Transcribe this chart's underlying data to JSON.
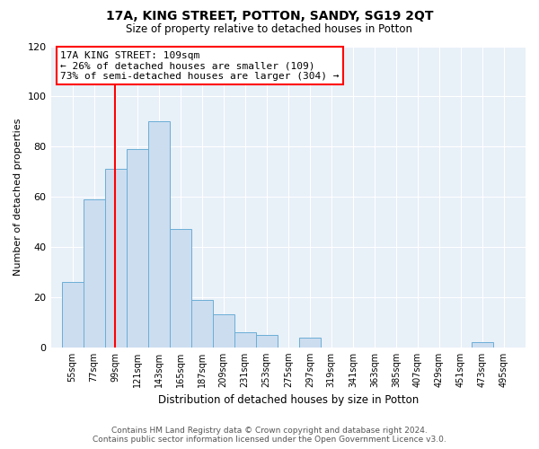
{
  "title": "17A, KING STREET, POTTON, SANDY, SG19 2QT",
  "subtitle": "Size of property relative to detached houses in Potton",
  "xlabel": "Distribution of detached houses by size in Potton",
  "ylabel": "Number of detached properties",
  "bin_labels": [
    "55sqm",
    "77sqm",
    "99sqm",
    "121sqm",
    "143sqm",
    "165sqm",
    "187sqm",
    "209sqm",
    "231sqm",
    "253sqm",
    "275sqm",
    "297sqm",
    "319sqm",
    "341sqm",
    "363sqm",
    "385sqm",
    "407sqm",
    "429sqm",
    "451sqm",
    "473sqm",
    "495sqm"
  ],
  "bar_values": [
    26,
    59,
    71,
    79,
    90,
    47,
    19,
    13,
    6,
    5,
    0,
    4,
    0,
    0,
    0,
    0,
    0,
    0,
    0,
    2,
    0
  ],
  "bar_color": "#ccddf0",
  "bar_edge_color": "#6baed6",
  "vline_color": "red",
  "annotation_title": "17A KING STREET: 109sqm",
  "annotation_line1": "← 26% of detached houses are smaller (109)",
  "annotation_line2": "73% of semi-detached houses are larger (304) →",
  "ylim": [
    0,
    120
  ],
  "yticks": [
    0,
    20,
    40,
    60,
    80,
    100,
    120
  ],
  "footer_line1": "Contains HM Land Registry data © Crown copyright and database right 2024.",
  "footer_line2": "Contains public sector information licensed under the Open Government Licence v3.0.",
  "bin_starts": [
    55,
    77,
    99,
    121,
    143,
    165,
    187,
    209,
    231,
    253,
    275,
    297,
    319,
    341,
    363,
    385,
    407,
    429,
    451,
    473,
    495
  ],
  "bin_width": 22,
  "property_size": 109,
  "bg_color": "#e8f0f8",
  "grid_color": "#ffffff"
}
